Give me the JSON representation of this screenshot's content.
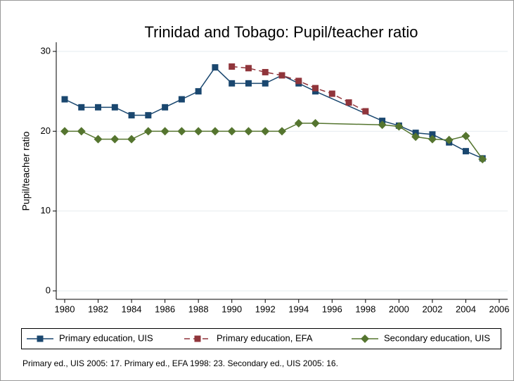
{
  "chart_data": {
    "type": "line",
    "title": "Trinidad and Tobago: Pupil/teacher ratio",
    "ylabel": "Pupil/teacher ratio",
    "note": "Primary ed., UIS 2005: 17. Primary ed., EFA 1998: 23. Secondary ed., UIS 2005: 16.",
    "xlim": [
      1980,
      2006
    ],
    "xticks": [
      1980,
      1982,
      1984,
      1986,
      1988,
      1990,
      1992,
      1994,
      1996,
      1998,
      2000,
      2002,
      2004,
      2006
    ],
    "ylim": [
      0,
      30
    ],
    "yticks": [
      0,
      10,
      20,
      30
    ],
    "grid": true,
    "legend": "bottom",
    "series": [
      {
        "name": "Primary education, UIS",
        "color": "#1a476f",
        "marker": "square",
        "line_style": "solid",
        "x": [
          1980,
          1981,
          1982,
          1983,
          1984,
          1985,
          1986,
          1987,
          1988,
          1989,
          1990,
          1991,
          1992,
          1993,
          1994,
          1995,
          1999,
          2000,
          2001,
          2002,
          2003,
          2004,
          2005
        ],
        "values": [
          24,
          23,
          23,
          23,
          22,
          22,
          23,
          24,
          25,
          28,
          26,
          26,
          26,
          27,
          26,
          25,
          21.3,
          20.7,
          19.8,
          19.6,
          18.6,
          17.5,
          16.6
        ]
      },
      {
        "name": "Primary education, EFA",
        "color": "#90353b",
        "marker": "square",
        "line_style": "dashed",
        "x": [
          1990,
          1991,
          1992,
          1993,
          1994,
          1995,
          1996,
          1997,
          1998
        ],
        "values": [
          28.1,
          27.9,
          27.4,
          27.0,
          26.3,
          25.4,
          24.7,
          23.6,
          22.5
        ]
      },
      {
        "name": "Secondary education, UIS",
        "color": "#55752f",
        "marker": "diamond",
        "line_style": "solid",
        "x": [
          1980,
          1981,
          1982,
          1983,
          1984,
          1985,
          1986,
          1987,
          1988,
          1989,
          1990,
          1991,
          1992,
          1993,
          1994,
          1995,
          1999,
          2000,
          2001,
          2002,
          2003,
          2004,
          2005
        ],
        "values": [
          20,
          20,
          19,
          19,
          19,
          20,
          20,
          20,
          20,
          20,
          20,
          20,
          20,
          20,
          21,
          21,
          20.8,
          20.6,
          19.3,
          19.0,
          18.9,
          19.4,
          16.5
        ]
      }
    ]
  }
}
